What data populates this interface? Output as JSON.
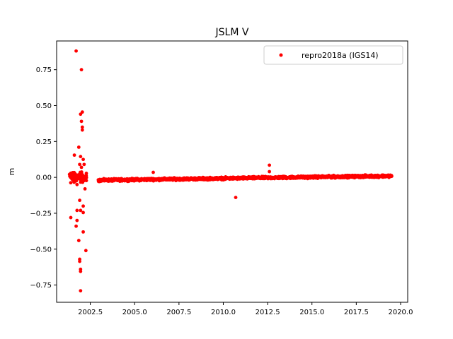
{
  "chart_data": {
    "type": "scatter",
    "title": "JSLM V",
    "xlabel": "",
    "ylabel": "m",
    "xlim": [
      2000.6,
      2020.4
    ],
    "ylim": [
      -0.87,
      0.95
    ],
    "xticks": [
      2002.5,
      2005.0,
      2007.5,
      2010.0,
      2012.5,
      2015.0,
      2017.5,
      2020.0
    ],
    "xtick_labels": [
      "2002.5",
      "2005.0",
      "2007.5",
      "2010.0",
      "2012.5",
      "2015.0",
      "2017.5",
      "2020.0"
    ],
    "yticks": [
      -0.75,
      -0.5,
      -0.25,
      0.0,
      0.25,
      0.5,
      0.75
    ],
    "ytick_labels": [
      "−0.75",
      "−0.50",
      "−0.25",
      "0.00",
      "0.25",
      "0.50",
      "0.75"
    ],
    "legend": {
      "placement": "top-right"
    },
    "grid": false,
    "series": [
      {
        "name": "repro2018a (IGS14)",
        "color": "#ff0000",
        "outliers": [
          {
            "x": 2001.7,
            "y": 0.88
          },
          {
            "x": 2002.0,
            "y": 0.75
          },
          {
            "x": 2002.05,
            "y": 0.455
          },
          {
            "x": 2001.95,
            "y": 0.44
          },
          {
            "x": 2002.0,
            "y": 0.39
          },
          {
            "x": 2002.05,
            "y": 0.35
          },
          {
            "x": 2002.05,
            "y": 0.33
          },
          {
            "x": 2001.85,
            "y": 0.21
          },
          {
            "x": 2001.6,
            "y": 0.155
          },
          {
            "x": 2001.95,
            "y": 0.145
          },
          {
            "x": 2002.1,
            "y": 0.125
          },
          {
            "x": 2002.15,
            "y": 0.09
          },
          {
            "x": 2001.9,
            "y": 0.09
          },
          {
            "x": 2002.0,
            "y": 0.07
          },
          {
            "x": 2001.75,
            "y": -0.05
          },
          {
            "x": 2002.2,
            "y": -0.08
          },
          {
            "x": 2001.9,
            "y": -0.16
          },
          {
            "x": 2002.1,
            "y": -0.2
          },
          {
            "x": 2001.95,
            "y": -0.23
          },
          {
            "x": 2001.75,
            "y": -0.23
          },
          {
            "x": 2002.1,
            "y": -0.245
          },
          {
            "x": 2001.4,
            "y": -0.28
          },
          {
            "x": 2001.75,
            "y": -0.3
          },
          {
            "x": 2001.7,
            "y": -0.34
          },
          {
            "x": 2002.1,
            "y": -0.38
          },
          {
            "x": 2001.85,
            "y": -0.44
          },
          {
            "x": 2002.25,
            "y": -0.51
          },
          {
            "x": 2001.9,
            "y": -0.57
          },
          {
            "x": 2001.9,
            "y": -0.585
          },
          {
            "x": 2001.95,
            "y": -0.64
          },
          {
            "x": 2001.95,
            "y": -0.655
          },
          {
            "x": 2001.95,
            "y": -0.79
          },
          {
            "x": 2006.05,
            "y": 0.035
          },
          {
            "x": 2010.7,
            "y": -0.14
          },
          {
            "x": 2012.6,
            "y": 0.085
          },
          {
            "x": 2012.6,
            "y": 0.04
          }
        ],
        "dense_band": {
          "x_start": 2002.95,
          "x_end": 2019.5,
          "baseline_start": -0.02,
          "baseline_end": 0.01,
          "spread": 0.012,
          "early_x_start": 2001.3,
          "early_x_end": 2002.3,
          "early_spread": 0.05
        }
      }
    ]
  }
}
